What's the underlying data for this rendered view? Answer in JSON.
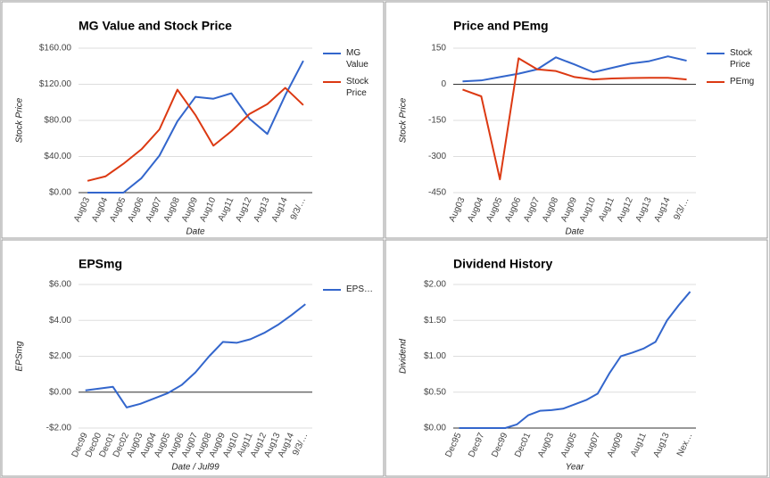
{
  "chart_data": [
    {
      "type": "line",
      "title": "MG Value and Stock Price",
      "x_label": "Date",
      "y_label": "Stock Price",
      "categories": [
        "Aug03",
        "Aug04",
        "Aug05",
        "Aug06",
        "Aug07",
        "Aug08",
        "Aug09",
        "Aug10",
        "Aug11",
        "Aug12",
        "Aug13",
        "Aug14",
        "9/3/…"
      ],
      "series": [
        {
          "name": "MG Value",
          "color": "#3366cc",
          "values": [
            0,
            0,
            0,
            16,
            41,
            79,
            106,
            104,
            110,
            82,
            65,
            108,
            146
          ]
        },
        {
          "name": "Stock Price",
          "color": "#dc3912",
          "values": [
            13,
            18,
            32,
            48,
            70,
            114,
            86,
            52,
            68,
            87,
            98,
            116,
            97
          ]
        }
      ],
      "ylim": [
        0,
        160
      ],
      "yticks": [
        {
          "value": 0,
          "label": "$0.00"
        },
        {
          "value": 40,
          "label": "$40.00"
        },
        {
          "value": 80,
          "label": "$80.00"
        },
        {
          "value": 120,
          "label": "$120.00"
        },
        {
          "value": 160,
          "label": "$160.00"
        }
      ],
      "grid": true,
      "legend": "right"
    },
    {
      "type": "line",
      "title": "Price and PEmg",
      "x_label": "Date",
      "y_label": "Stock Price",
      "categories": [
        "Aug03",
        "Aug04",
        "Aug05",
        "Aug06",
        "Aug07",
        "Aug08",
        "Aug09",
        "Aug10",
        "Aug11",
        "Aug12",
        "Aug13",
        "Aug14",
        "9/3/…"
      ],
      "series": [
        {
          "name": "Stock Price",
          "color": "#3366cc",
          "values": [
            12,
            16,
            30,
            44,
            62,
            112,
            82,
            50,
            68,
            86,
            96,
            116,
            98
          ]
        },
        {
          "name": "PEmg",
          "color": "#dc3912",
          "values": [
            -22,
            -50,
            -395,
            108,
            62,
            55,
            30,
            20,
            24,
            26,
            27,
            27,
            20
          ]
        }
      ],
      "ylim": [
        -450,
        150
      ],
      "yticks": [
        -450,
        -300,
        -150,
        0,
        150
      ],
      "grid": true,
      "legend": "right"
    },
    {
      "type": "line",
      "title": "EPSmg",
      "x_label": "Date / Jul99",
      "y_label": "EPSmg",
      "categories": [
        "Dec99",
        "Dec00",
        "Dec01",
        "Dec02",
        "Aug03",
        "Aug04",
        "Aug05",
        "Aug06",
        "Aug07",
        "Aug08",
        "Aug09",
        "Aug10",
        "Aug11",
        "Aug12",
        "Aug13",
        "Aug14",
        "9/3/…"
      ],
      "series": [
        {
          "name": "EPS…",
          "color": "#3366cc",
          "values": [
            0.1,
            0.2,
            0.3,
            -0.85,
            -0.65,
            -0.35,
            -0.05,
            0.4,
            1.1,
            2.0,
            2.8,
            2.75,
            2.95,
            3.3,
            3.75,
            4.3,
            4.9
          ]
        }
      ],
      "ylim": [
        -2,
        6
      ],
      "yticks": [
        {
          "value": -2,
          "label": "-$2.00"
        },
        {
          "value": 0,
          "label": "$0.00"
        },
        {
          "value": 2,
          "label": "$2.00"
        },
        {
          "value": 4,
          "label": "$4.00"
        },
        {
          "value": 6,
          "label": "$6.00"
        }
      ],
      "grid": true,
      "legend": "right"
    },
    {
      "type": "line",
      "title": "Dividend History",
      "x_label": "Year",
      "y_label": "Dividend",
      "categories": [
        "Dec95",
        null,
        "Dec97",
        null,
        "Dec99",
        null,
        "Dec01",
        null,
        "Aug03",
        null,
        "Aug05",
        null,
        "Aug07",
        null,
        "Aug09",
        null,
        "Aug11",
        null,
        "Aug13",
        null,
        "Nex…"
      ],
      "color": "#3366cc",
      "values": [
        0,
        0,
        0,
        0,
        0,
        0.05,
        0.18,
        0.24,
        0.25,
        0.27,
        0.33,
        0.39,
        0.48,
        0.76,
        1.0,
        1.05,
        1.11,
        1.2,
        1.5,
        1.71,
        1.9
      ],
      "ylim": [
        0,
        2
      ],
      "yticks": [
        {
          "value": 0,
          "label": "$0.00"
        },
        {
          "value": 0.5,
          "label": "$0.50"
        },
        {
          "value": 1,
          "label": "$1.00"
        },
        {
          "value": 1.5,
          "label": "$1.50"
        },
        {
          "value": 2,
          "label": "$2.00"
        }
      ],
      "grid": true
    }
  ]
}
